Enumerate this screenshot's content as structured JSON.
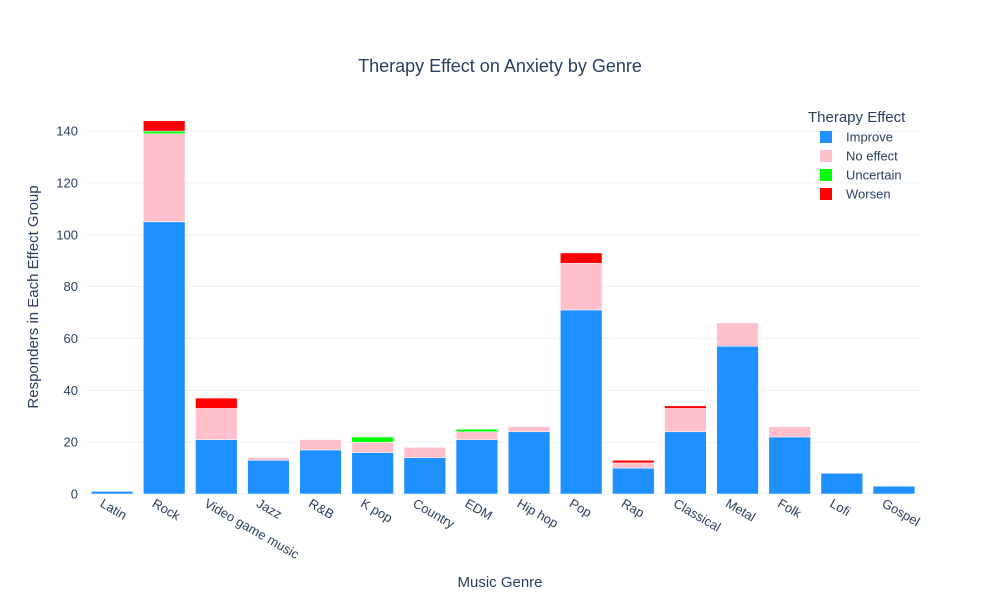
{
  "chart_data": {
    "type": "bar",
    "stacked": true,
    "title": "Therapy Effect on Anxiety by Genre",
    "xlabel": "Music Genre",
    "ylabel": "Responders in Each Effect Group",
    "ylim": [
      0,
      152
    ],
    "yticks": [
      0,
      20,
      40,
      60,
      80,
      100,
      120,
      140
    ],
    "grid": true,
    "legend": {
      "title": "Therapy Effect",
      "placement": "top-right"
    },
    "categories": [
      "Latin",
      "Rock",
      "Video game music",
      "Jazz",
      "R&B",
      "K pop",
      "Country",
      "EDM",
      "Hip hop",
      "Pop",
      "Rap",
      "Classical",
      "Metal",
      "Folk",
      "Lofi",
      "Gospel"
    ],
    "series": [
      {
        "name": "Improve",
        "color": "#1e90ff",
        "values": [
          1,
          105,
          21,
          13,
          17,
          16,
          14,
          21,
          24,
          71,
          10,
          24,
          57,
          22,
          8,
          3
        ]
      },
      {
        "name": "No effect",
        "color": "#ffc0cb",
        "values": [
          0,
          34,
          12,
          1,
          4,
          4,
          4,
          3,
          2,
          18,
          2,
          9,
          9,
          4,
          0,
          0
        ]
      },
      {
        "name": "Uncertain",
        "color": "#00ff00",
        "values": [
          0,
          1,
          0,
          0,
          0,
          2,
          0,
          1,
          0,
          0,
          0,
          0,
          0,
          0,
          0,
          0
        ]
      },
      {
        "name": "Worsen",
        "color": "#ff0000",
        "values": [
          0,
          4,
          4,
          0,
          0,
          0,
          0,
          0,
          0,
          4,
          1,
          1,
          0,
          0,
          0,
          0
        ]
      }
    ]
  }
}
